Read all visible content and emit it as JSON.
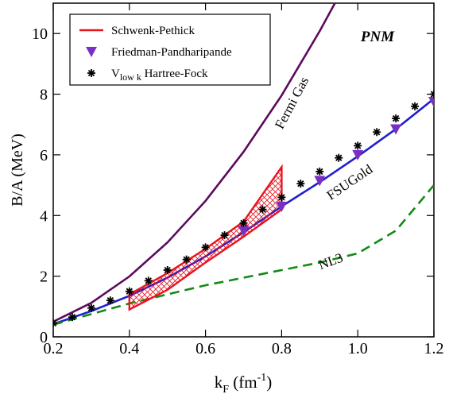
{
  "chart_data": {
    "type": "line",
    "xlabel": {
      "main": "k",
      "sub": "F",
      "rest": " (fm",
      "sup": "-1",
      "end": ")"
    },
    "ylabel": "B/A (MeV)",
    "xlim": [
      0.2,
      1.2
    ],
    "ylim": [
      0,
      11
    ],
    "xticks": [
      0.2,
      0.4,
      0.6,
      0.8,
      {
        "value": 1,
        "label": "1.0"
      },
      1.2
    ],
    "yticks": [
      0,
      2,
      4,
      6,
      8,
      10
    ],
    "legend": "upper left",
    "label": "PNM",
    "curves": [
      {
        "name": "Fermi Gas",
        "color": "#5c0a5c",
        "dash": false,
        "x": [
          0.2,
          0.3,
          0.4,
          0.5,
          0.6,
          0.7,
          0.8,
          0.9,
          0.94
        ],
        "values": [
          0.5,
          1.12,
          1.99,
          3.11,
          4.48,
          6.1,
          7.96,
          10.08,
          11.0
        ]
      },
      {
        "name": "FSUGold",
        "color": "#1f1fd0",
        "dash": false,
        "x": [
          0.2,
          0.3,
          0.4,
          0.5,
          0.6,
          0.7,
          0.8,
          0.9,
          1.0,
          1.1,
          1.2
        ],
        "values": [
          0.42,
          0.85,
          1.35,
          1.95,
          2.65,
          3.45,
          4.3,
          5.1,
          5.95,
          6.85,
          7.85
        ]
      },
      {
        "name": "NL3",
        "color": "#138a13",
        "dash": true,
        "x": [
          0.2,
          0.3,
          0.4,
          0.5,
          0.6,
          0.7,
          0.8,
          0.9,
          1.0,
          1.1,
          1.2
        ],
        "values": [
          0.4,
          0.75,
          1.1,
          1.4,
          1.7,
          1.95,
          2.2,
          2.45,
          2.75,
          3.5,
          5.0
        ]
      }
    ],
    "series": [
      {
        "name": "Schwenk-Pethick",
        "kind": "band",
        "color": "#e8141e",
        "x": [
          0.4,
          0.5,
          0.6,
          0.7,
          0.8
        ],
        "upper": [
          1.4,
          2.1,
          2.9,
          3.8,
          5.6
        ],
        "lower": [
          0.9,
          1.55,
          2.45,
          3.3,
          4.2
        ]
      },
      {
        "name": "Friedman-Pandharipande",
        "kind": "triangle",
        "color": "#7a2fc4",
        "x": [
          0.7,
          0.8,
          0.9,
          1.0,
          1.1,
          1.2
        ],
        "values": [
          3.5,
          4.3,
          5.15,
          6.0,
          6.85,
          7.75
        ]
      },
      {
        "name": "V",
        "name_sub": "low k",
        "name_rest": " Hartree-Fock",
        "kind": "star",
        "color": "#000000",
        "x": [
          0.2,
          0.25,
          0.3,
          0.35,
          0.4,
          0.45,
          0.5,
          0.55,
          0.6,
          0.65,
          0.7,
          0.75,
          0.8,
          0.85,
          0.9,
          0.95,
          1.0,
          1.05,
          1.1,
          1.15,
          1.2
        ],
        "values": [
          0.45,
          0.65,
          0.95,
          1.2,
          1.5,
          1.85,
          2.2,
          2.55,
          2.95,
          3.35,
          3.75,
          4.2,
          4.6,
          5.05,
          5.45,
          5.9,
          6.3,
          6.75,
          7.2,
          7.6,
          8.0
        ]
      }
    ]
  }
}
